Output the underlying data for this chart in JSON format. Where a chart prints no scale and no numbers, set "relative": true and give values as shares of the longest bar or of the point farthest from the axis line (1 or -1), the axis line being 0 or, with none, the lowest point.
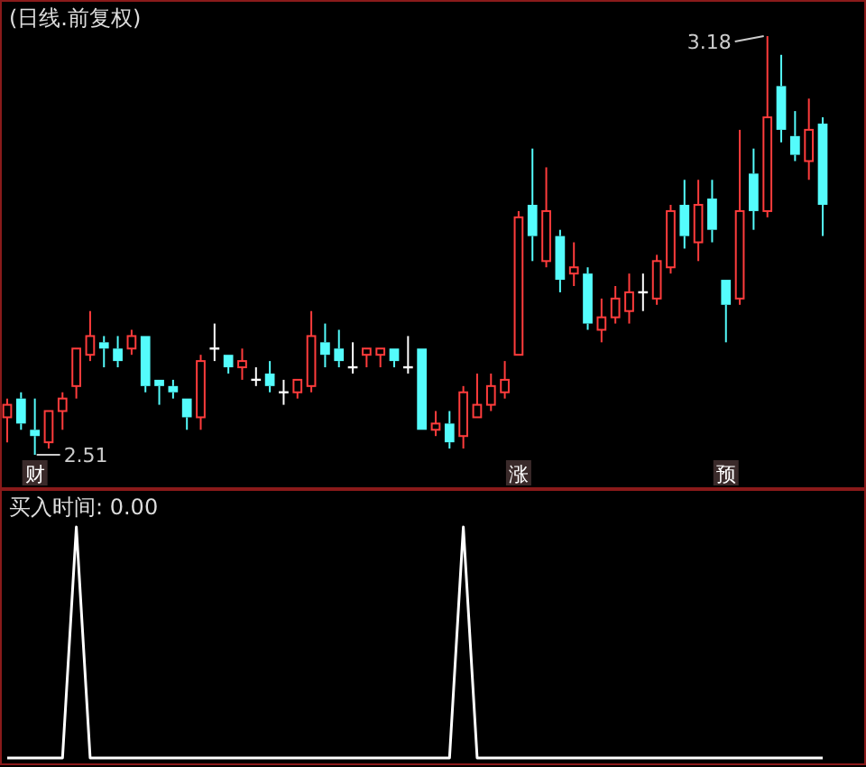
{
  "chart_data": [
    {
      "type": "candlestick",
      "title": "(日线.前复权)",
      "categories": [
        null,
        null,
        "财",
        null,
        null,
        null,
        null,
        null,
        null,
        null,
        null,
        null,
        null,
        null,
        null,
        null,
        null,
        null,
        null,
        null,
        null,
        null,
        null,
        null,
        null,
        null,
        null,
        null,
        null,
        null,
        null,
        null,
        null,
        null,
        null,
        null,
        null,
        "涨",
        null,
        null,
        null,
        null,
        null,
        null,
        null,
        null,
        null,
        null,
        null,
        null,
        null,
        null,
        "预",
        null,
        null,
        null,
        null,
        null,
        null,
        null
      ],
      "ohlc": [
        [
          2.57,
          2.6,
          2.53,
          2.59
        ],
        [
          2.6,
          2.61,
          2.55,
          2.56
        ],
        [
          2.55,
          2.6,
          2.51,
          2.54
        ],
        [
          2.53,
          2.58,
          2.52,
          2.58
        ],
        [
          2.58,
          2.61,
          2.55,
          2.6
        ],
        [
          2.62,
          2.68,
          2.6,
          2.68
        ],
        [
          2.67,
          2.74,
          2.66,
          2.7
        ],
        [
          2.69,
          2.7,
          2.65,
          2.68
        ],
        [
          2.68,
          2.7,
          2.65,
          2.66
        ],
        [
          2.68,
          2.71,
          2.67,
          2.7
        ],
        [
          2.7,
          2.7,
          2.61,
          2.62
        ],
        [
          2.63,
          2.63,
          2.59,
          2.62
        ],
        [
          2.62,
          2.63,
          2.6,
          2.61
        ],
        [
          2.6,
          2.6,
          2.55,
          2.57
        ],
        [
          2.57,
          2.67,
          2.55,
          2.66
        ],
        [
          2.68,
          2.72,
          2.66,
          2.68
        ],
        [
          2.67,
          2.67,
          2.64,
          2.65
        ],
        [
          2.65,
          2.68,
          2.63,
          2.66
        ],
        [
          2.63,
          2.65,
          2.62,
          2.63
        ],
        [
          2.64,
          2.66,
          2.61,
          2.62
        ],
        [
          2.61,
          2.63,
          2.59,
          2.61
        ],
        [
          2.61,
          2.63,
          2.6,
          2.63
        ],
        [
          2.62,
          2.74,
          2.61,
          2.7
        ],
        [
          2.69,
          2.72,
          2.65,
          2.67
        ],
        [
          2.68,
          2.71,
          2.65,
          2.66
        ],
        [
          2.65,
          2.69,
          2.64,
          2.65
        ],
        [
          2.67,
          2.68,
          2.65,
          2.68
        ],
        [
          2.67,
          2.68,
          2.65,
          2.68
        ],
        [
          2.68,
          2.68,
          2.65,
          2.66
        ],
        [
          2.65,
          2.7,
          2.64,
          2.65
        ],
        [
          2.68,
          2.68,
          2.55,
          2.55
        ],
        [
          2.55,
          2.58,
          2.54,
          2.56
        ],
        [
          2.56,
          2.58,
          2.52,
          2.53
        ],
        [
          2.54,
          2.62,
          2.52,
          2.61
        ],
        [
          2.57,
          2.64,
          2.57,
          2.59
        ],
        [
          2.59,
          2.64,
          2.58,
          2.62
        ],
        [
          2.61,
          2.66,
          2.6,
          2.63
        ],
        [
          2.67,
          2.9,
          2.67,
          2.89
        ],
        [
          2.91,
          3.0,
          2.82,
          2.86
        ],
        [
          2.82,
          2.97,
          2.81,
          2.9
        ],
        [
          2.86,
          2.87,
          2.77,
          2.79
        ],
        [
          2.8,
          2.85,
          2.78,
          2.81
        ],
        [
          2.8,
          2.81,
          2.71,
          2.72
        ],
        [
          2.71,
          2.76,
          2.69,
          2.73
        ],
        [
          2.73,
          2.78,
          2.72,
          2.76
        ],
        [
          2.74,
          2.8,
          2.72,
          2.77
        ],
        [
          2.77,
          2.8,
          2.74,
          2.77
        ],
        [
          2.76,
          2.83,
          2.75,
          2.82
        ],
        [
          2.81,
          2.91,
          2.8,
          2.9
        ],
        [
          2.91,
          2.95,
          2.84,
          2.86
        ],
        [
          2.85,
          2.95,
          2.82,
          2.91
        ],
        [
          2.92,
          2.95,
          2.85,
          2.87
        ],
        [
          2.79,
          2.79,
          2.69,
          2.75
        ],
        [
          2.76,
          3.03,
          2.75,
          2.9
        ],
        [
          2.96,
          3.0,
          2.87,
          2.9
        ],
        [
          2.9,
          3.18,
          2.89,
          3.05
        ],
        [
          3.1,
          3.15,
          3.01,
          3.03
        ],
        [
          3.02,
          3.06,
          2.98,
          2.99
        ],
        [
          2.98,
          3.08,
          2.95,
          3.03
        ],
        [
          3.04,
          3.05,
          2.86,
          2.91
        ]
      ],
      "annotations": [
        "3.18",
        "2.51"
      ]
    },
    {
      "type": "line",
      "title": "买入时间: 0.00",
      "relative": true,
      "categories": [
        null,
        null,
        null,
        null,
        null,
        null,
        null,
        null,
        null,
        null,
        null,
        null,
        null,
        null,
        null,
        null,
        null,
        null,
        null,
        null,
        null,
        null,
        null,
        null,
        null,
        null,
        null,
        null,
        null,
        null,
        null,
        null,
        null,
        null,
        null,
        null,
        null,
        null,
        null,
        null,
        null,
        null,
        null,
        null,
        null,
        null,
        null,
        null,
        null,
        null,
        null,
        null,
        null,
        null,
        null,
        null,
        null,
        null,
        null,
        null
      ],
      "series": [
        {
          "color": "#ffffff",
          "values": [
            0,
            0,
            0,
            0,
            0,
            1,
            0,
            0,
            0,
            0,
            0,
            0,
            0,
            0,
            0,
            0,
            0,
            0,
            0,
            0,
            0,
            0,
            0,
            0,
            0,
            0,
            0,
            0,
            0,
            0,
            0,
            0,
            0,
            1,
            0,
            0,
            0,
            0,
            0,
            0,
            0,
            0,
            0,
            0,
            0,
            0,
            0,
            0,
            0,
            0,
            0,
            0,
            0,
            0,
            0,
            0,
            0,
            0,
            0,
            0
          ]
        }
      ]
    }
  ]
}
